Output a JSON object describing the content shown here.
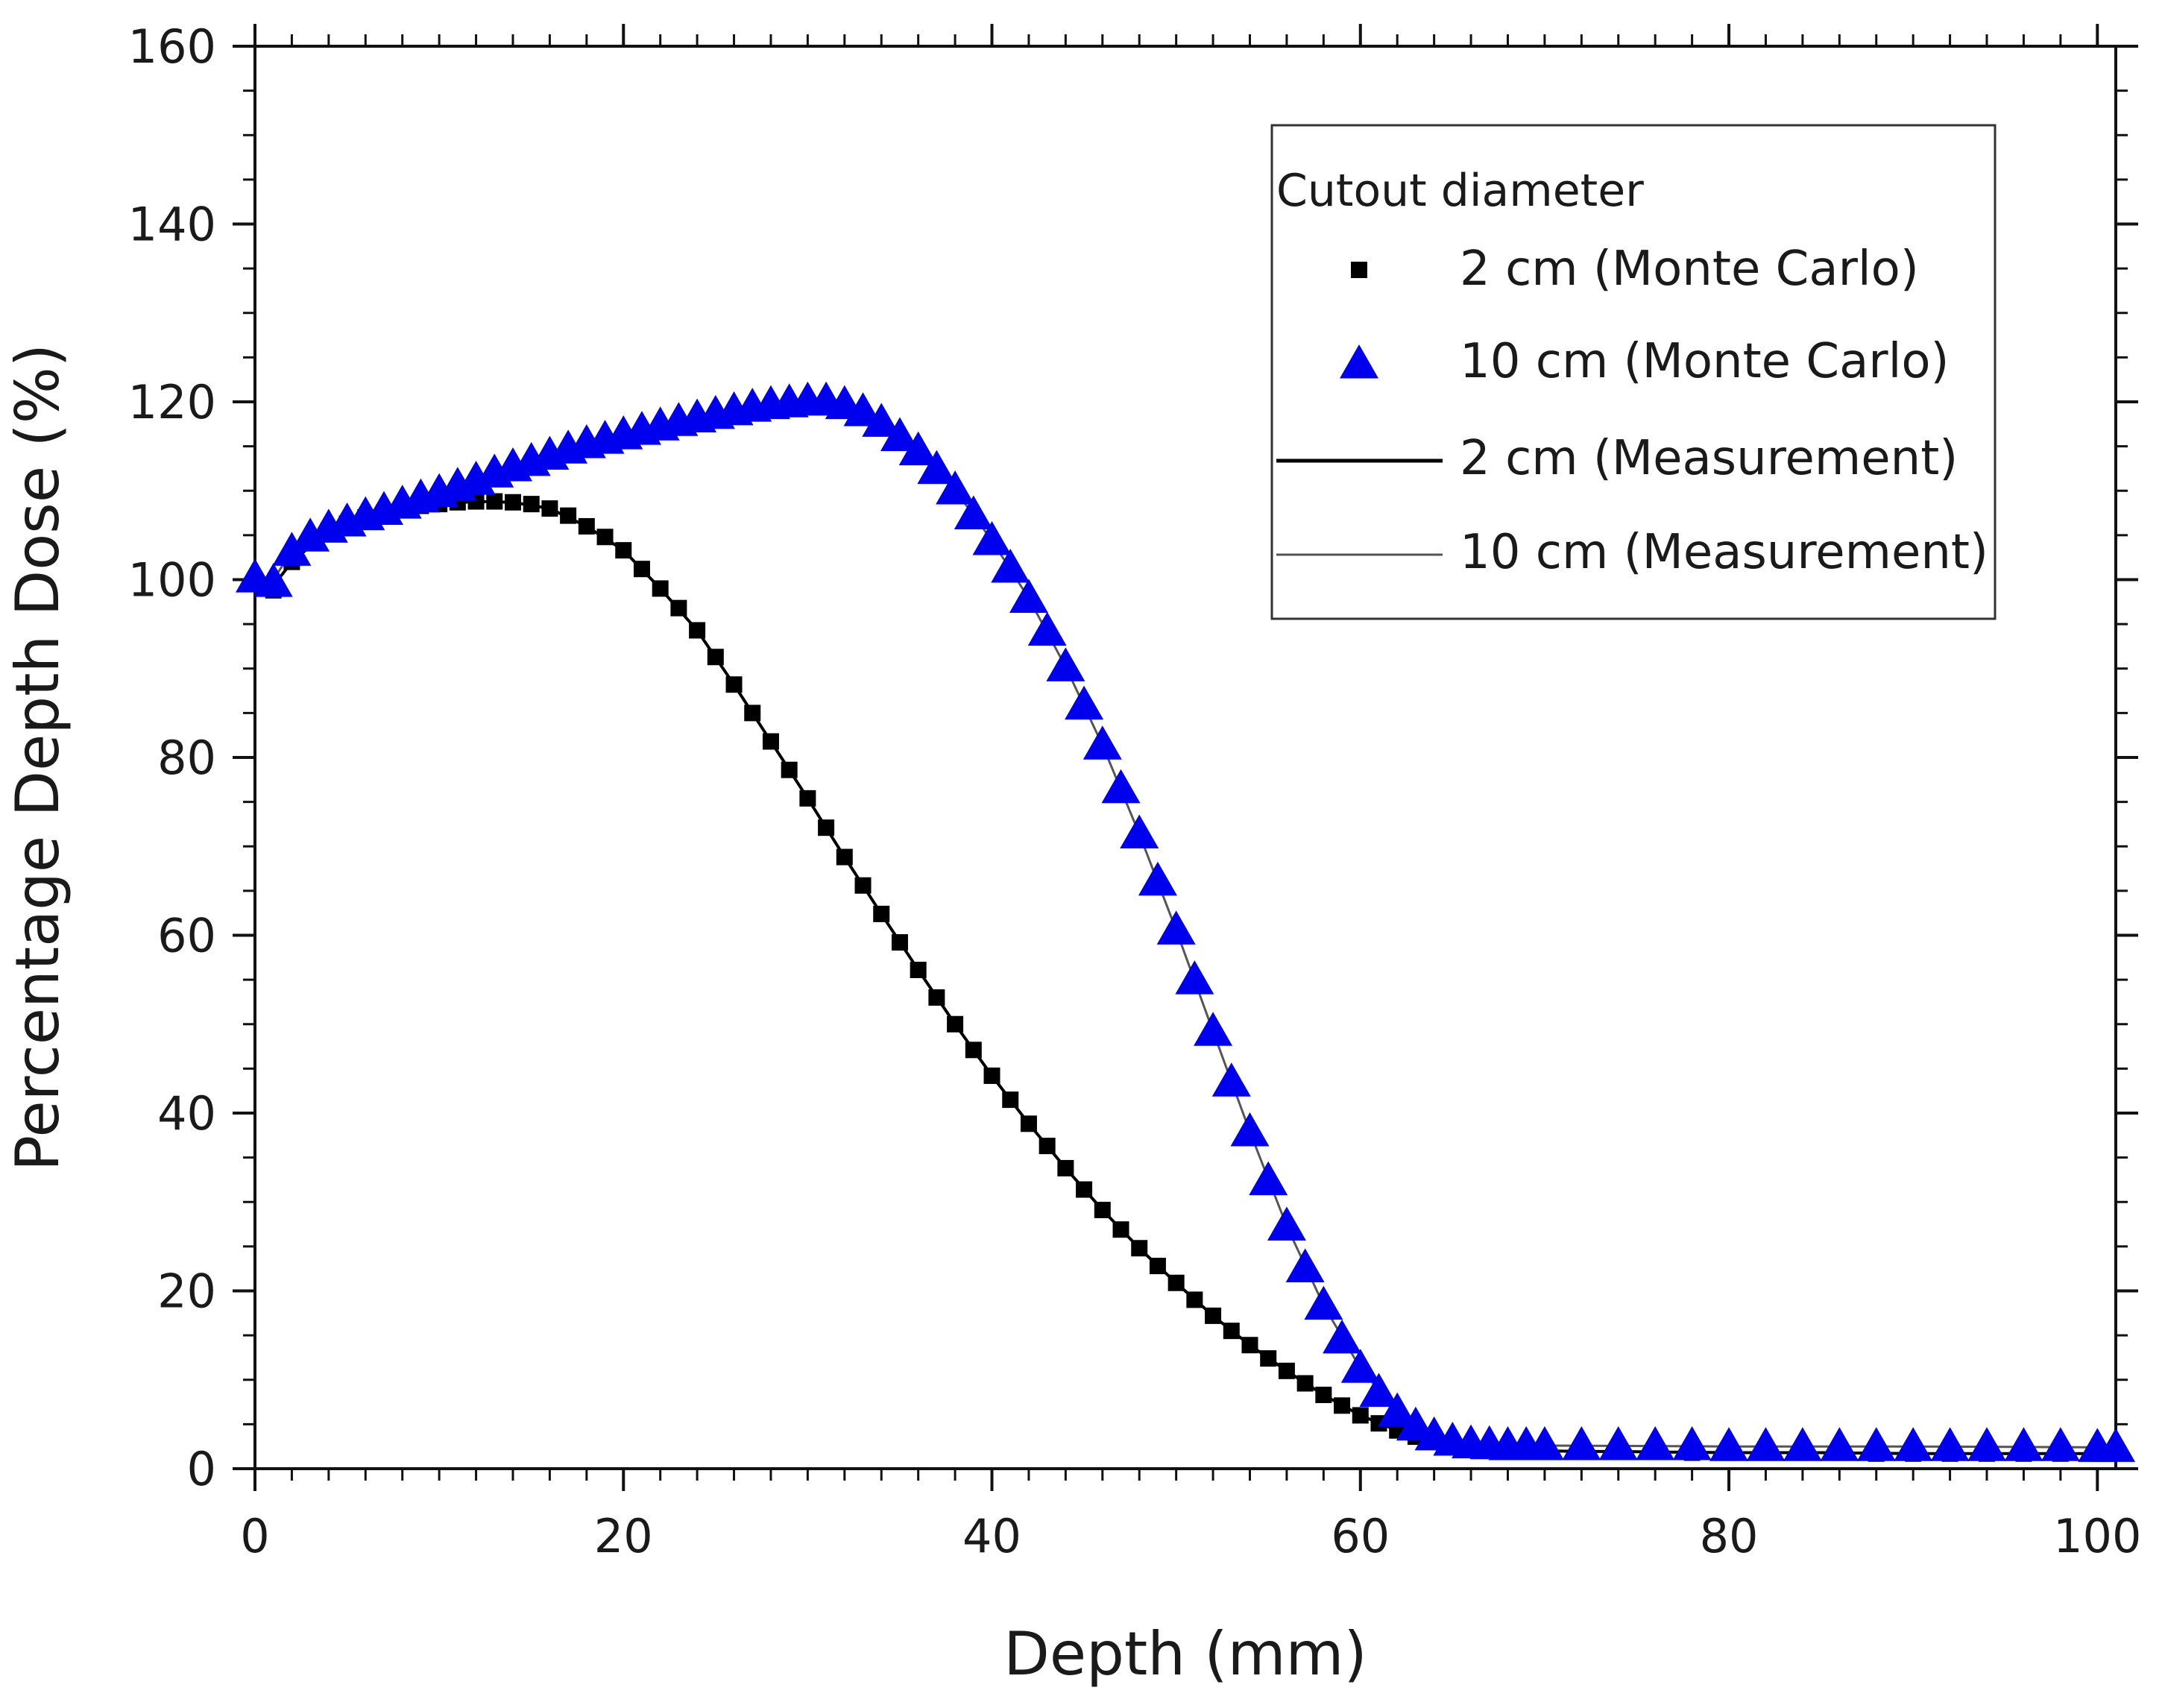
{
  "chart_data": {
    "type": "scatter",
    "title": "",
    "xlabel": "Depth (mm)",
    "ylabel": "Percentage Depth Dose (%)",
    "xlim": [
      0,
      101
    ],
    "ylim": [
      0,
      160
    ],
    "x_ticks": [
      0,
      20,
      40,
      60,
      80,
      100
    ],
    "y_ticks": [
      0,
      20,
      40,
      60,
      80,
      100,
      120,
      140,
      160
    ],
    "x_tick_labels": [
      "0",
      "20",
      "40",
      "60",
      "80",
      "100"
    ],
    "y_tick_labels": [
      "0",
      "20",
      "40",
      "60",
      "80",
      "100",
      "120",
      "140",
      "160"
    ],
    "grid": false,
    "legend": {
      "title": "Cutout diameter",
      "position": "top-right",
      "entries": [
        {
          "label": "2 cm (Monte Carlo)",
          "marker": "square",
          "color": "#000000"
        },
        {
          "label": "10 cm (Monte Carlo)",
          "marker": "triangle",
          "color": "#0000ee"
        },
        {
          "label": "2 cm (Measurement)",
          "marker": "line",
          "color": "#000000"
        },
        {
          "label": "10 cm (Measurement)",
          "marker": "line",
          "color": "#555555"
        }
      ]
    },
    "series": [
      {
        "name": "2 cm (Monte Carlo)",
        "marker": "square",
        "color": "#000000",
        "points": [
          [
            0,
            99.8
          ],
          [
            1,
            98.8
          ],
          [
            2,
            102
          ],
          [
            3,
            104.2
          ],
          [
            4,
            105.5
          ],
          [
            5,
            106.3
          ],
          [
            6,
            107
          ],
          [
            7,
            107.5
          ],
          [
            8,
            108
          ],
          [
            9,
            108.3
          ],
          [
            10,
            108.5
          ],
          [
            11,
            108.7
          ],
          [
            12,
            108.8
          ],
          [
            13,
            108.8
          ],
          [
            14,
            108.7
          ],
          [
            15,
            108.5
          ],
          [
            16,
            108
          ],
          [
            17,
            107.2
          ],
          [
            18,
            106
          ],
          [
            19,
            104.8
          ],
          [
            20,
            103.3
          ],
          [
            21,
            101.2
          ],
          [
            22,
            99
          ],
          [
            23,
            96.8
          ],
          [
            24,
            94.3
          ],
          [
            25,
            91.3
          ],
          [
            26,
            88.2
          ],
          [
            27,
            85
          ],
          [
            28,
            81.8
          ],
          [
            29,
            78.6
          ],
          [
            30,
            75.4
          ],
          [
            31,
            72.1
          ],
          [
            32,
            68.8
          ],
          [
            33,
            65.6
          ],
          [
            34,
            62.4
          ],
          [
            35,
            59.2
          ],
          [
            36,
            56.1
          ],
          [
            37,
            53
          ],
          [
            38,
            50
          ],
          [
            39,
            47.1
          ],
          [
            40,
            44.2
          ],
          [
            41,
            41.5
          ],
          [
            42,
            38.8
          ],
          [
            43,
            36.3
          ],
          [
            44,
            33.8
          ],
          [
            45,
            31.4
          ],
          [
            46,
            29.1
          ],
          [
            47,
            26.9
          ],
          [
            48,
            24.8
          ],
          [
            49,
            22.8
          ],
          [
            50,
            20.9
          ],
          [
            51,
            19
          ],
          [
            52,
            17.2
          ],
          [
            53,
            15.5
          ],
          [
            54,
            13.9
          ],
          [
            55,
            12.4
          ],
          [
            56,
            11
          ],
          [
            57,
            9.6
          ],
          [
            58,
            8.3
          ],
          [
            59,
            7.1
          ],
          [
            60,
            6
          ],
          [
            61,
            5.1
          ],
          [
            62,
            4.3
          ],
          [
            63,
            3.6
          ],
          [
            64,
            3.1
          ],
          [
            65,
            2.7
          ],
          [
            66,
            2.4
          ],
          [
            67,
            2.2
          ],
          [
            68,
            2.1
          ],
          [
            69,
            2
          ],
          [
            70,
            2
          ],
          [
            72,
            1.9
          ],
          [
            74,
            1.9
          ],
          [
            76,
            1.9
          ],
          [
            78,
            1.8
          ],
          [
            80,
            1.8
          ],
          [
            82,
            1.8
          ],
          [
            84,
            1.8
          ],
          [
            86,
            1.8
          ],
          [
            88,
            1.7
          ],
          [
            90,
            1.7
          ],
          [
            92,
            1.7
          ],
          [
            94,
            1.7
          ],
          [
            96,
            1.7
          ],
          [
            98,
            1.7
          ],
          [
            100,
            1.7
          ]
        ]
      },
      {
        "name": "10 cm (Monte Carlo)",
        "marker": "triangle",
        "color": "#0000ee",
        "points": [
          [
            0,
            100.2
          ],
          [
            1,
            99.7
          ],
          [
            2,
            103.2
          ],
          [
            3,
            104.8
          ],
          [
            4,
            105.8
          ],
          [
            5,
            106.5
          ],
          [
            6,
            107.2
          ],
          [
            7,
            107.8
          ],
          [
            8,
            108.5
          ],
          [
            9,
            109.2
          ],
          [
            10,
            109.8
          ],
          [
            11,
            110.5
          ],
          [
            12,
            111.2
          ],
          [
            13,
            112
          ],
          [
            14,
            112.7
          ],
          [
            15,
            113.3
          ],
          [
            16,
            114
          ],
          [
            17,
            114.7
          ],
          [
            18,
            115.3
          ],
          [
            19,
            115.8
          ],
          [
            20,
            116.3
          ],
          [
            21,
            116.8
          ],
          [
            22,
            117.3
          ],
          [
            23,
            117.8
          ],
          [
            24,
            118.2
          ],
          [
            25,
            118.6
          ],
          [
            26,
            119
          ],
          [
            27,
            119.4
          ],
          [
            28,
            119.7
          ],
          [
            29,
            119.9
          ],
          [
            30,
            120.1
          ],
          [
            31,
            120.1
          ],
          [
            32,
            119.7
          ],
          [
            33,
            118.9
          ],
          [
            34,
            117.7
          ],
          [
            35,
            116.1
          ],
          [
            36,
            114.5
          ],
          [
            37,
            112.4
          ],
          [
            38,
            110.1
          ],
          [
            39,
            107.3
          ],
          [
            40,
            104.4
          ],
          [
            41,
            101.3
          ],
          [
            42,
            97.9
          ],
          [
            43,
            94.2
          ],
          [
            44,
            90.2
          ],
          [
            45,
            85.9
          ],
          [
            46,
            81.4
          ],
          [
            47,
            76.5
          ],
          [
            48,
            71.4
          ],
          [
            49,
            66.1
          ],
          [
            50,
            60.6
          ],
          [
            51,
            55
          ],
          [
            52,
            49.2
          ],
          [
            53,
            43.5
          ],
          [
            54,
            37.9
          ],
          [
            55,
            32.4
          ],
          [
            56,
            27.3
          ],
          [
            57,
            22.6
          ],
          [
            58,
            18.4
          ],
          [
            59,
            14.6
          ],
          [
            60,
            11.3
          ],
          [
            61,
            8.6
          ],
          [
            62,
            6.4
          ],
          [
            63,
            4.8
          ],
          [
            64,
            3.7
          ],
          [
            65,
            3.1
          ],
          [
            66,
            2.8
          ],
          [
            67,
            2.7
          ],
          [
            68,
            2.6
          ],
          [
            69,
            2.6
          ],
          [
            70,
            2.6
          ],
          [
            72,
            2.6
          ],
          [
            74,
            2.6
          ],
          [
            76,
            2.6
          ],
          [
            78,
            2.6
          ],
          [
            80,
            2.5
          ],
          [
            82,
            2.5
          ],
          [
            84,
            2.5
          ],
          [
            86,
            2.5
          ],
          [
            88,
            2.5
          ],
          [
            90,
            2.5
          ],
          [
            92,
            2.5
          ],
          [
            94,
            2.5
          ],
          [
            96,
            2.5
          ],
          [
            98,
            2.5
          ],
          [
            100,
            2.4
          ],
          [
            101,
            2.4
          ]
        ]
      },
      {
        "name": "2 cm (Measurement)",
        "marker": "line",
        "color": "#000000",
        "points": [
          [
            0,
            99.8
          ],
          [
            1,
            99.3
          ],
          [
            2,
            102
          ],
          [
            4,
            105.5
          ],
          [
            6,
            107
          ],
          [
            8,
            108
          ],
          [
            10,
            108.5
          ],
          [
            12,
            108.8
          ],
          [
            14,
            108.7
          ],
          [
            16,
            108
          ],
          [
            18,
            106
          ],
          [
            20,
            103.3
          ],
          [
            22,
            99
          ],
          [
            24,
            94.3
          ],
          [
            26,
            88.2
          ],
          [
            28,
            81.8
          ],
          [
            30,
            75.4
          ],
          [
            32,
            68.8
          ],
          [
            34,
            62.4
          ],
          [
            36,
            56.1
          ],
          [
            38,
            50
          ],
          [
            40,
            44.2
          ],
          [
            42,
            38.8
          ],
          [
            44,
            33.8
          ],
          [
            46,
            29.1
          ],
          [
            48,
            24.8
          ],
          [
            50,
            20.9
          ],
          [
            52,
            17.2
          ],
          [
            54,
            13.9
          ],
          [
            56,
            11
          ],
          [
            58,
            8.3
          ],
          [
            60,
            6
          ],
          [
            62,
            4.3
          ],
          [
            64,
            3.1
          ],
          [
            66,
            2.4
          ],
          [
            68,
            2.1
          ],
          [
            70,
            2
          ],
          [
            75,
            1.9
          ],
          [
            80,
            1.8
          ],
          [
            85,
            1.8
          ],
          [
            90,
            1.7
          ],
          [
            95,
            1.7
          ],
          [
            101,
            1.7
          ]
        ]
      },
      {
        "name": "10 cm (Measurement)",
        "marker": "line",
        "color": "#555555",
        "points": [
          [
            0,
            100.2
          ],
          [
            1,
            100
          ],
          [
            2,
            103.2
          ],
          [
            4,
            105.8
          ],
          [
            6,
            107.2
          ],
          [
            8,
            108.5
          ],
          [
            10,
            109.8
          ],
          [
            12,
            111.2
          ],
          [
            14,
            112.7
          ],
          [
            16,
            114
          ],
          [
            18,
            115.3
          ],
          [
            20,
            116.3
          ],
          [
            22,
            117.3
          ],
          [
            24,
            118.2
          ],
          [
            26,
            119
          ],
          [
            28,
            119.7
          ],
          [
            30,
            120.1
          ],
          [
            31,
            120.1
          ],
          [
            32,
            119.7
          ],
          [
            34,
            117.7
          ],
          [
            36,
            114.5
          ],
          [
            38,
            110.1
          ],
          [
            40,
            104.4
          ],
          [
            42,
            97.9
          ],
          [
            44,
            90.2
          ],
          [
            46,
            81.4
          ],
          [
            48,
            71.4
          ],
          [
            50,
            60.6
          ],
          [
            52,
            49.2
          ],
          [
            54,
            37.9
          ],
          [
            56,
            27.3
          ],
          [
            58,
            18.4
          ],
          [
            60,
            11.3
          ],
          [
            62,
            6.4
          ],
          [
            64,
            3.7
          ],
          [
            66,
            2.8
          ],
          [
            68,
            2.6
          ],
          [
            70,
            2.6
          ],
          [
            80,
            2.5
          ],
          [
            90,
            2.5
          ],
          [
            101,
            2.4
          ]
        ]
      }
    ]
  }
}
